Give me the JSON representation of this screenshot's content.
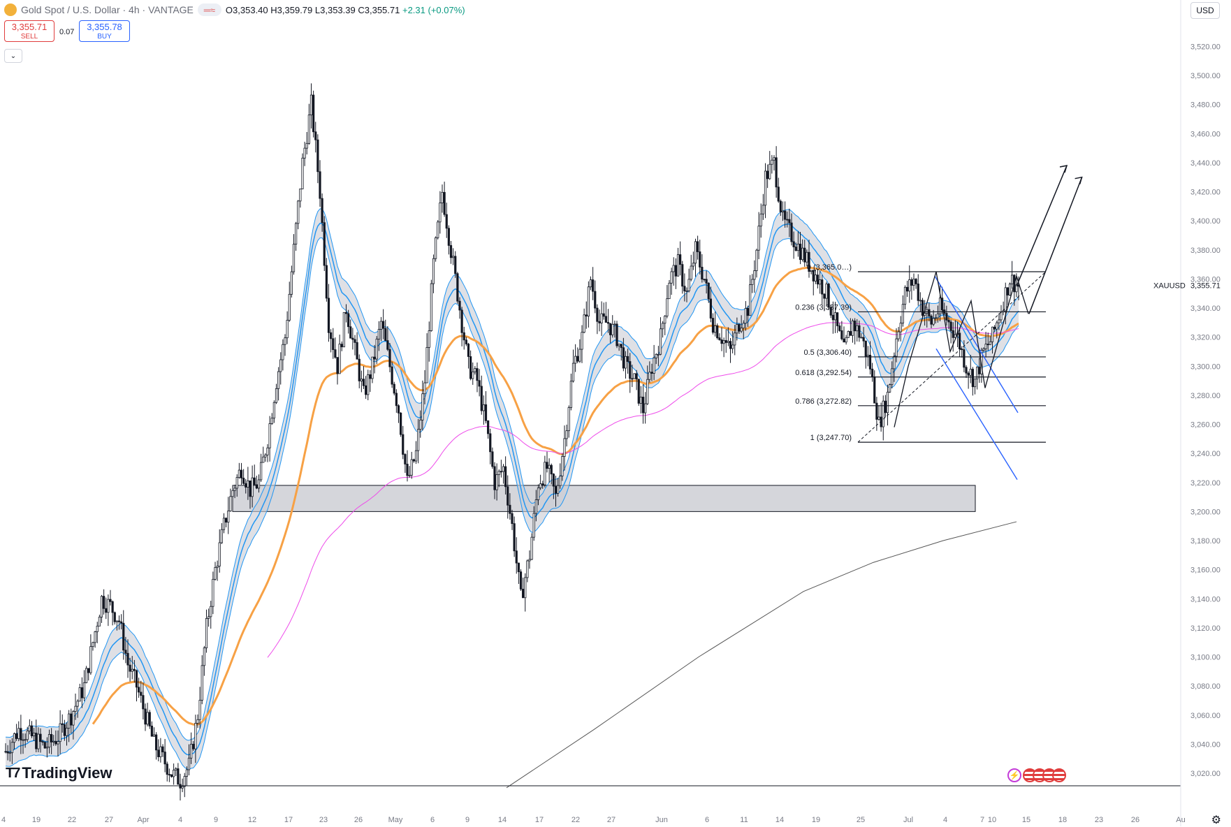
{
  "header": {
    "title": "Gold Spot / U.S. Dollar · 4h · VANTAGE",
    "ohlc": {
      "o_label": "O",
      "o": "3,353.40",
      "h_label": "H",
      "h": "3,359.79",
      "l_label": "L",
      "l": "3,353.39",
      "c_label": "C",
      "c": "3,355.71",
      "change": "+2.31 (+0.07%)"
    }
  },
  "trade": {
    "sell_price": "3,355.71",
    "sell_label": "SELL",
    "spread": "0.07",
    "buy_price": "3,355.78",
    "buy_label": "BUY"
  },
  "currency": "USD",
  "brand": "TradingView",
  "icons": [
    "gold-logo-icon",
    "indicator-pill-icon",
    "chevron-down-icon",
    "settings-gear-icon",
    "lightning-icon",
    "us-flag-icon"
  ],
  "colors": {
    "candle": "#131722",
    "ema_blue": "#2196f3",
    "ema_orange": "#f7a145",
    "ema_magenta": "#ee4bea",
    "ma_gray": "#555555",
    "zone": "#9598a1",
    "channel": "#2962ff",
    "change_green": "#089981",
    "sell_red": "#e03c3c"
  },
  "chart_data": {
    "type": "candlestick",
    "symbol_label": "XAUUSD",
    "last_price": "3,355.71",
    "y_axis": {
      "ylim": [
        3010,
        3530
      ],
      "ticks": [
        "3,520.00",
        "3,500.00",
        "3,480.00",
        "3,460.00",
        "3,440.00",
        "3,420.00",
        "3,400.00",
        "3,380.00",
        "3,360.00",
        "3,340.00",
        "3,320.00",
        "3,300.00",
        "3,280.00",
        "3,260.00",
        "3,240.00",
        "3,220.00",
        "3,200.00",
        "3,180.00",
        "3,160.00",
        "3,140.00",
        "3,120.00",
        "3,100.00",
        "3,080.00",
        "3,060.00",
        "3,040.00",
        "3,020.00"
      ],
      "tick_values": [
        3520,
        3500,
        3480,
        3460,
        3440,
        3420,
        3400,
        3380,
        3360,
        3340,
        3320,
        3300,
        3280,
        3260,
        3240,
        3220,
        3200,
        3180,
        3160,
        3140,
        3120,
        3100,
        3080,
        3060,
        3040,
        3020
      ]
    },
    "x_axis": {
      "ticks": [
        "4",
        "19",
        "22",
        "27",
        "Apr",
        "4",
        "9",
        "12",
        "17",
        "23",
        "26",
        "May",
        "6",
        "9",
        "14",
        "17",
        "22",
        "27",
        "Jun",
        "6",
        "11",
        "14",
        "19",
        "25",
        "Jul",
        "4",
        "7",
        "10",
        "15",
        "18",
        "23",
        "26",
        "Au"
      ]
    },
    "fibonacci": [
      {
        "label": "0 (3,365.0…)",
        "value": 3365.0
      },
      {
        "label": "0.236 (3,337.39)",
        "value": 3337.39
      },
      {
        "label": "0.5 (3,306.40)",
        "value": 3306.4
      },
      {
        "label": "0.618 (3,292.54)",
        "value": 3292.54
      },
      {
        "label": "0.786 (3,272.82)",
        "value": 3272.82
      },
      {
        "label": "1 (3,247.70)",
        "value": 3247.7
      }
    ],
    "support_zone": [
      3200,
      3218
    ],
    "price_path": [
      [
        0,
        3035
      ],
      [
        3,
        3050
      ],
      [
        6,
        3045
      ],
      [
        9,
        3038
      ],
      [
        12,
        3045
      ],
      [
        15,
        3060
      ],
      [
        18,
        3080
      ],
      [
        20,
        3110
      ],
      [
        22,
        3140
      ],
      [
        24,
        3135
      ],
      [
        26,
        3125
      ],
      [
        28,
        3095
      ],
      [
        30,
        3080
      ],
      [
        32,
        3060
      ],
      [
        34,
        3040
      ],
      [
        36,
        3030
      ],
      [
        38,
        3020
      ],
      [
        40,
        3015
      ],
      [
        42,
        3025
      ],
      [
        44,
        3060
      ],
      [
        46,
        3120
      ],
      [
        48,
        3160
      ],
      [
        50,
        3190
      ],
      [
        52,
        3215
      ],
      [
        54,
        3230
      ],
      [
        56,
        3215
      ],
      [
        58,
        3220
      ],
      [
        60,
        3250
      ],
      [
        62,
        3290
      ],
      [
        64,
        3320
      ],
      [
        66,
        3380
      ],
      [
        68,
        3440
      ],
      [
        70,
        3480
      ],
      [
        72,
        3420
      ],
      [
        74,
        3330
      ],
      [
        76,
        3300
      ],
      [
        78,
        3340
      ],
      [
        80,
        3310
      ],
      [
        82,
        3280
      ],
      [
        84,
        3300
      ],
      [
        86,
        3330
      ],
      [
        88,
        3300
      ],
      [
        90,
        3270
      ],
      [
        92,
        3220
      ],
      [
        94,
        3240
      ],
      [
        96,
        3290
      ],
      [
        98,
        3370
      ],
      [
        100,
        3420
      ],
      [
        102,
        3380
      ],
      [
        104,
        3340
      ],
      [
        106,
        3300
      ],
      [
        108,
        3290
      ],
      [
        110,
        3260
      ],
      [
        112,
        3220
      ],
      [
        114,
        3230
      ],
      [
        116,
        3190
      ],
      [
        118,
        3140
      ],
      [
        120,
        3170
      ],
      [
        122,
        3220
      ],
      [
        124,
        3230
      ],
      [
        126,
        3210
      ],
      [
        128,
        3250
      ],
      [
        130,
        3300
      ],
      [
        132,
        3320
      ],
      [
        134,
        3360
      ],
      [
        136,
        3330
      ],
      [
        138,
        3330
      ],
      [
        140,
        3320
      ],
      [
        142,
        3300
      ],
      [
        144,
        3290
      ],
      [
        146,
        3270
      ],
      [
        148,
        3300
      ],
      [
        150,
        3320
      ],
      [
        152,
        3360
      ],
      [
        154,
        3370
      ],
      [
        156,
        3350
      ],
      [
        158,
        3380
      ],
      [
        160,
        3360
      ],
      [
        162,
        3330
      ],
      [
        164,
        3320
      ],
      [
        166,
        3310
      ],
      [
        168,
        3330
      ],
      [
        170,
        3340
      ],
      [
        172,
        3380
      ],
      [
        174,
        3430
      ],
      [
        176,
        3440
      ],
      [
        178,
        3400
      ],
      [
        180,
        3390
      ],
      [
        182,
        3380
      ],
      [
        184,
        3370
      ],
      [
        186,
        3360
      ],
      [
        188,
        3350
      ],
      [
        190,
        3330
      ],
      [
        192,
        3310
      ],
      [
        194,
        3330
      ],
      [
        196,
        3320
      ],
      [
        198,
        3300
      ],
      [
        200,
        3260
      ],
      [
        202,
        3280
      ],
      [
        204,
        3320
      ],
      [
        206,
        3350
      ],
      [
        208,
        3360
      ],
      [
        210,
        3340
      ],
      [
        212,
        3330
      ],
      [
        214,
        3340
      ],
      [
        216,
        3330
      ],
      [
        218,
        3320
      ],
      [
        220,
        3300
      ],
      [
        222,
        3290
      ],
      [
        224,
        3310
      ],
      [
        226,
        3320
      ],
      [
        228,
        3340
      ],
      [
        230,
        3360
      ],
      [
        232,
        3355
      ]
    ],
    "projection_arrows": [
      {
        "from": [
          232,
          3355
        ],
        "to": [
          252,
          3438
        ]
      },
      {
        "from": [
          237,
          3336
        ],
        "to": [
          258,
          3430
        ]
      }
    ]
  }
}
